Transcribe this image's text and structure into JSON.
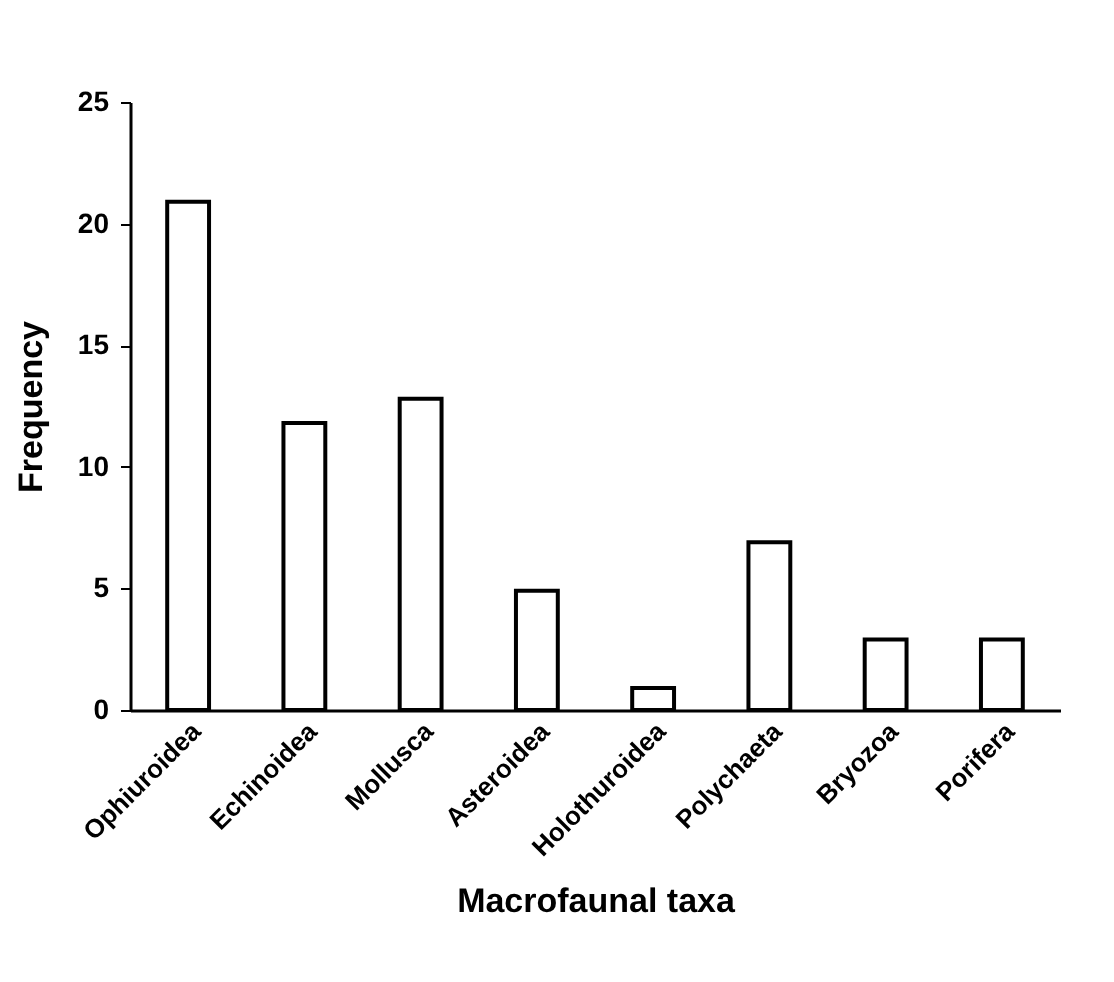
{
  "chart_data": {
    "type": "bar",
    "xlabel": "Macrofaunal taxa",
    "ylabel": "Frequency",
    "categories": [
      "Ophiuroidea",
      "Echinoidea",
      "Mollusca",
      "Asteroidea",
      "Holothuroidea",
      "Polychaeta",
      "Bryozoa",
      "Porifera"
    ],
    "values": [
      20.9,
      11.8,
      12.8,
      4.9,
      0.9,
      6.9,
      2.9,
      2.9
    ],
    "color": "#ffffff",
    "ylim": [
      0,
      25
    ],
    "yticks": [
      0,
      5,
      10,
      15,
      20,
      25
    ],
    "grid": false
  }
}
